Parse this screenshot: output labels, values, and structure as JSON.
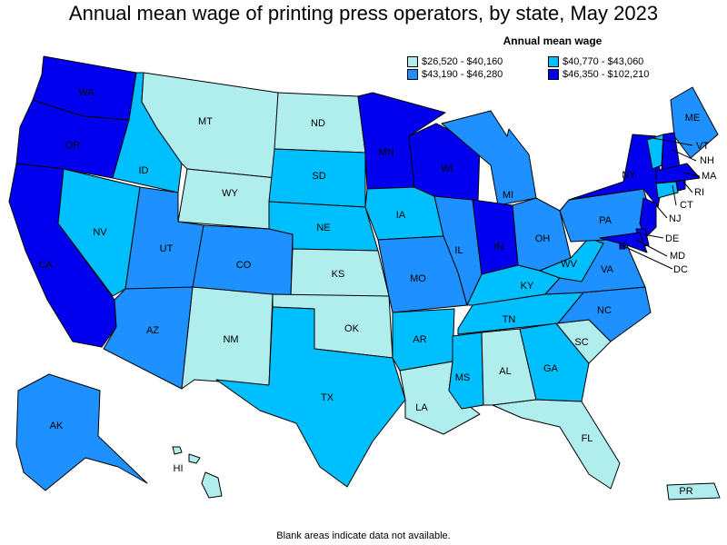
{
  "title": "Annual mean wage of printing press operators, by state, May 2023",
  "footnote": "Blank areas indicate data not available.",
  "legend": {
    "title": "Annual mean wage",
    "items": [
      {
        "label": "$26,520 - $40,160",
        "color": "#b0eeee"
      },
      {
        "label": "$40,770 - $43,060",
        "color": "#00bfff"
      },
      {
        "label": "$43,190 - $46,280",
        "color": "#1e90ff"
      },
      {
        "label": "$46,350 - $102,210",
        "color": "#0000ee"
      }
    ]
  },
  "chart_data": {
    "type": "choropleth",
    "bins": [
      "$26,520 - $40,160",
      "$40,770 - $43,060",
      "$43,190 - $46,280",
      "$46,350 - $102,210"
    ],
    "states": {
      "WA": 3,
      "OR": 3,
      "CA": 3,
      "ID": 1,
      "NV": 1,
      "MT": 0,
      "WY": 0,
      "UT": 2,
      "AZ": 2,
      "CO": 2,
      "NM": 0,
      "ND": 0,
      "SD": 1,
      "NE": 1,
      "KS": 0,
      "OK": 0,
      "TX": 1,
      "MN": 3,
      "IA": 1,
      "MO": 2,
      "AR": 1,
      "LA": 0,
      "WI": 3,
      "IL": 2,
      "MI": 2,
      "IN": 3,
      "OH": 2,
      "KY": 1,
      "TN": 1,
      "MS": 1,
      "AL": 0,
      "GA": 1,
      "FL": 0,
      "SC": 0,
      "NC": 2,
      "VA": 2,
      "WV": 1,
      "PA": 2,
      "NY": 3,
      "ME": 2,
      "VT": 1,
      "NH": 3,
      "MA": 3,
      "RI": 3,
      "CT": 1,
      "NJ": 3,
      "DE": 3,
      "MD": 3,
      "DC": 3,
      "AK": 2,
      "HI": 0,
      "PR": 0
    }
  }
}
